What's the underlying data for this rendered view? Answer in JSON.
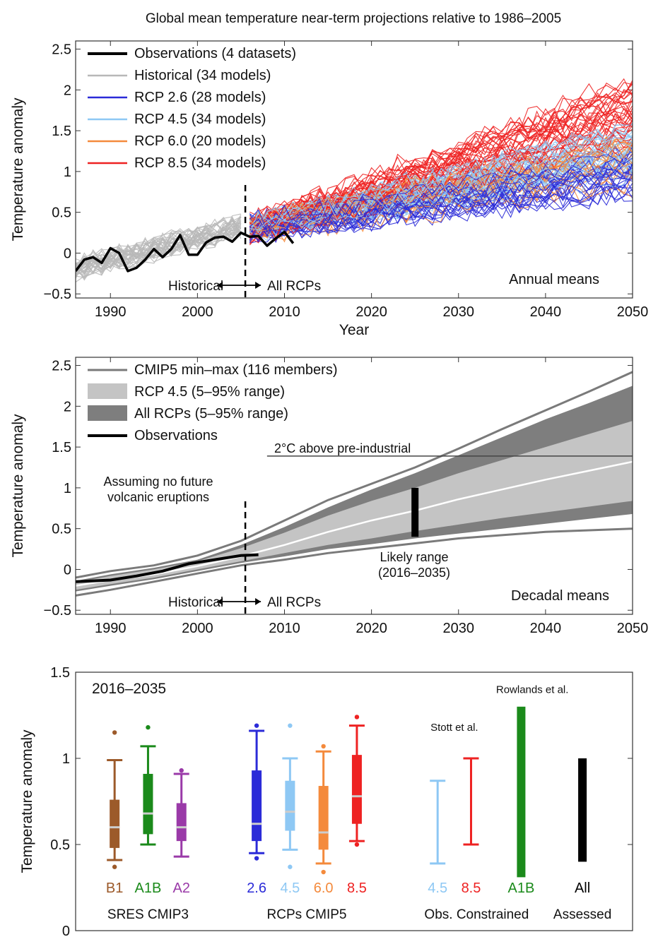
{
  "figure": {
    "title": "Global mean temperature near-term projections relative to 1986–2005"
  },
  "colors": {
    "observations": "#000000",
    "historical": "#b8b8b8",
    "rcp26": "#2b2bd8",
    "rcp45": "#8ec8f4",
    "rcp60": "#f48a3c",
    "rcp85": "#ee2222",
    "minmax": "#7a7a7a",
    "band_rcp45": "#c4c4c4",
    "band_all": "#7e7e7e",
    "sres_b1": "#9c5a2a",
    "sres_a1b": "#1b8a1b",
    "sres_a2": "#9a3aa8"
  },
  "chart_data": [
    {
      "type": "line",
      "id": "annual",
      "ylabel": "Temperature anomaly",
      "xlabel": "Year",
      "xlim": [
        1986,
        2050
      ],
      "ylim": [
        -0.55,
        2.6
      ],
      "xticks": [
        1990,
        2000,
        2010,
        2020,
        2030,
        2040,
        2050
      ],
      "yticks": [
        -0.5,
        0,
        0.5,
        1,
        1.5,
        2,
        2.5
      ],
      "ytick_labels": [
        "−0.5",
        "0",
        "0.5",
        "1",
        "1.5",
        "2",
        "2.5"
      ],
      "legend": {
        "placement": "top-left",
        "entries": [
          {
            "label": "Observations (4 datasets)",
            "series": "observations"
          },
          {
            "label": "Historical (34 models)",
            "series": "historical"
          },
          {
            "label": "RCP 2.6 (28 models)",
            "series": "rcp26"
          },
          {
            "label": "RCP 4.5 (34 models)",
            "series": "rcp45"
          },
          {
            "label": "RCP 6.0 (20 models)",
            "series": "rcp60"
          },
          {
            "label": "RCP 8.5 (34 models)",
            "series": "rcp85"
          }
        ]
      },
      "annotations": {
        "corner_label": "Annual means",
        "historical_label": "Historical",
        "rcps_label": "All RCPs",
        "divider_year": 2005.5
      },
      "observations": {
        "x": [
          1986,
          1987,
          1988,
          1989,
          1990,
          1991,
          1992,
          1993,
          1994,
          1995,
          1996,
          1997,
          1998,
          1999,
          2000,
          2001,
          2002,
          2003,
          2004,
          2005,
          2006,
          2007,
          2008,
          2009,
          2010,
          2011
        ],
        "y": [
          -0.22,
          -0.08,
          -0.05,
          -0.12,
          0.06,
          0.0,
          -0.22,
          -0.18,
          -0.08,
          0.05,
          -0.05,
          0.05,
          0.22,
          -0.02,
          -0.02,
          0.13,
          0.19,
          0.2,
          0.14,
          0.25,
          0.2,
          0.21,
          0.09,
          0.18,
          0.26,
          0.12
        ]
      },
      "historical": {
        "x_range": [
          1986,
          2005
        ],
        "start_mean": -0.2,
        "end_mean": 0.32,
        "spread": 0.22,
        "count": 34
      },
      "projections": [
        {
          "name": "rcp26",
          "x_range": [
            2006,
            2050
          ],
          "start_mean": 0.3,
          "end_mean": 1.0,
          "spread": 0.28,
          "count": 28
        },
        {
          "name": "rcp45",
          "x_range": [
            2006,
            2050
          ],
          "start_mean": 0.3,
          "end_mean": 1.25,
          "spread": 0.3,
          "count": 34
        },
        {
          "name": "rcp60",
          "x_range": [
            2006,
            2050
          ],
          "start_mean": 0.3,
          "end_mean": 1.1,
          "spread": 0.3,
          "count": 20
        },
        {
          "name": "rcp85",
          "x_range": [
            2006,
            2050
          ],
          "start_mean": 0.3,
          "end_mean": 1.75,
          "spread": 0.38,
          "count": 34
        }
      ]
    },
    {
      "type": "area",
      "id": "decadal",
      "ylabel": "Temperature anomaly",
      "xlim": [
        1986,
        2050
      ],
      "ylim": [
        -0.55,
        2.6
      ],
      "xticks": [
        1990,
        2000,
        2010,
        2020,
        2030,
        2040,
        2050
      ],
      "yticks": [
        -0.5,
        0,
        0.5,
        1,
        1.5,
        2,
        2.5
      ],
      "ytick_labels": [
        "−0.5",
        "0",
        "0.5",
        "1",
        "1.5",
        "2",
        "2.5"
      ],
      "legend": {
        "placement": "top-left",
        "entries": [
          {
            "label": "CMIP5 min–max (116 members)",
            "series": "minmax"
          },
          {
            "label": "RCP 4.5 (5–95% range)",
            "series": "band_rcp45"
          },
          {
            "label": "All RCPs (5–95% range)",
            "series": "band_all"
          },
          {
            "label": "Observations",
            "series": "observations"
          }
        ]
      },
      "annotations": {
        "corner_label": "Decadal means",
        "historical_label": "Historical",
        "rcps_label": "All RCPs",
        "divider_year": 2005.5,
        "preindustrial_label": "2°C above pre-industrial",
        "preindustrial_level": 1.39,
        "preindustrial_x_range": [
          2008,
          2050
        ],
        "volcanic_note": [
          "Assuming no future",
          "volcanic eruptions"
        ],
        "likely_label": [
          "Likely range",
          "(2016–2035)"
        ],
        "likely_bar": {
          "x": 2025,
          "low": 0.4,
          "high": 1.0
        }
      },
      "x": [
        1986,
        1990,
        1995,
        2000,
        2005,
        2010,
        2015,
        2020,
        2025,
        2030,
        2035,
        2040,
        2045,
        2050
      ],
      "minmax_high": [
        -0.1,
        -0.02,
        0.05,
        0.17,
        0.35,
        0.6,
        0.85,
        1.05,
        1.25,
        1.48,
        1.72,
        1.95,
        2.18,
        2.42
      ],
      "minmax_low": [
        -0.32,
        -0.25,
        -0.15,
        -0.05,
        0.05,
        0.12,
        0.2,
        0.26,
        0.32,
        0.38,
        0.42,
        0.46,
        0.48,
        0.5
      ],
      "all_high": [
        -0.14,
        -0.06,
        0.02,
        0.12,
        0.3,
        0.52,
        0.76,
        0.98,
        1.18,
        1.4,
        1.62,
        1.84,
        2.04,
        2.25
      ],
      "all_low": [
        -0.27,
        -0.2,
        -0.12,
        -0.02,
        0.08,
        0.16,
        0.25,
        0.31,
        0.38,
        0.44,
        0.5,
        0.56,
        0.62,
        0.68
      ],
      "rcp45_high": [
        -0.16,
        -0.08,
        0.0,
        0.1,
        0.26,
        0.45,
        0.66,
        0.84,
        1.0,
        1.18,
        1.34,
        1.5,
        1.66,
        1.82
      ],
      "rcp45_low": [
        -0.25,
        -0.18,
        -0.1,
        0.0,
        0.1,
        0.2,
        0.3,
        0.38,
        0.47,
        0.55,
        0.63,
        0.7,
        0.77,
        0.84
      ],
      "median": [
        -0.2,
        -0.13,
        -0.06,
        0.04,
        0.16,
        0.3,
        0.46,
        0.6,
        0.72,
        0.86,
        0.98,
        1.1,
        1.21,
        1.32
      ],
      "observations": {
        "x": [
          1986,
          1990,
          1993,
          1996,
          1999,
          2002,
          2005,
          2007
        ],
        "y": [
          -0.15,
          -0.13,
          -0.08,
          -0.02,
          0.07,
          0.12,
          0.17,
          0.18
        ]
      }
    },
    {
      "type": "box",
      "id": "distribution",
      "ylabel": "Temperature anomaly",
      "ylim": [
        0,
        1.5
      ],
      "yticks": [
        0,
        0.5,
        1,
        1.5
      ],
      "ytick_labels": [
        "0",
        "0.5",
        "1",
        "1.5"
      ],
      "period_label": "2016–2035",
      "boxes": [
        {
          "label": "B1",
          "color_key": "sres_b1",
          "pos": 0.7,
          "group": "SRES CMIP3",
          "min": 0.41,
          "q1": 0.48,
          "median": 0.6,
          "q3": 0.76,
          "max": 0.99,
          "dots": [
            0.37,
            1.15
          ]
        },
        {
          "label": "A1B",
          "color_key": "sres_a1b",
          "pos": 1.3,
          "group": "SRES CMIP3",
          "min": 0.5,
          "q1": 0.56,
          "median": 0.68,
          "q3": 0.91,
          "max": 1.07,
          "dots": [
            1.18
          ]
        },
        {
          "label": "A2",
          "color_key": "sres_a2",
          "pos": 1.9,
          "group": "SRES CMIP3",
          "min": 0.43,
          "q1": 0.52,
          "median": 0.6,
          "q3": 0.74,
          "max": 0.91,
          "dots": [
            0.93
          ]
        },
        {
          "label": "2.6",
          "color_key": "rcp26",
          "pos": 3.25,
          "group": "RCPs CMIP5",
          "min": 0.45,
          "q1": 0.52,
          "median": 0.62,
          "q3": 0.93,
          "max": 1.16,
          "dots": [
            0.42,
            1.19
          ]
        },
        {
          "label": "4.5",
          "color_key": "rcp45",
          "pos": 3.85,
          "group": "RCPs CMIP5",
          "min": 0.47,
          "q1": 0.58,
          "median": 0.69,
          "q3": 0.87,
          "max": 1.0,
          "dots": [
            0.37,
            1.19
          ]
        },
        {
          "label": "6.0",
          "color_key": "rcp60",
          "pos": 4.45,
          "group": "RCPs CMIP5",
          "min": 0.39,
          "q1": 0.47,
          "median": 0.57,
          "q3": 0.84,
          "max": 1.04,
          "dots": [
            0.34,
            1.07
          ]
        },
        {
          "label": "8.5",
          "color_key": "rcp85",
          "pos": 5.05,
          "group": "RCPs CMIP5",
          "min": 0.52,
          "q1": 0.62,
          "median": 0.78,
          "q3": 1.02,
          "max": 1.19,
          "dots": [
            0.5,
            1.24
          ]
        }
      ],
      "ranges": [
        {
          "label": "4.5",
          "color_key": "rcp45",
          "pos": 6.5,
          "group": "Obs. Constrained",
          "low": 0.39,
          "high": 0.87,
          "style": "whisker"
        },
        {
          "label": "8.5",
          "color_key": "rcp85",
          "pos": 7.1,
          "group": "Obs. Constrained",
          "low": 0.5,
          "high": 1.0,
          "style": "whisker"
        },
        {
          "label": "A1B",
          "color_key": "sres_a1b",
          "pos": 8.0,
          "group": "Obs. Constrained",
          "low": 0.31,
          "high": 1.3,
          "style": "bar"
        },
        {
          "label": "All",
          "color_key": "observations",
          "pos": 9.1,
          "group": "Assessed",
          "low": 0.4,
          "high": 1.0,
          "style": "bar"
        }
      ],
      "group_labels": [
        {
          "label": "SRES CMIP3",
          "pos": 1.3
        },
        {
          "label": "RCPs CMIP5",
          "pos": 4.15
        },
        {
          "label": "Obs. Constrained",
          "pos": 7.2
        },
        {
          "label": "Assessed",
          "pos": 9.1
        }
      ],
      "study_labels": [
        {
          "label": "Stott et al.",
          "pos": 6.8,
          "y": 1.18
        },
        {
          "label": "Rowlands et al.",
          "pos": 8.2,
          "y": 1.4
        }
      ]
    }
  ]
}
